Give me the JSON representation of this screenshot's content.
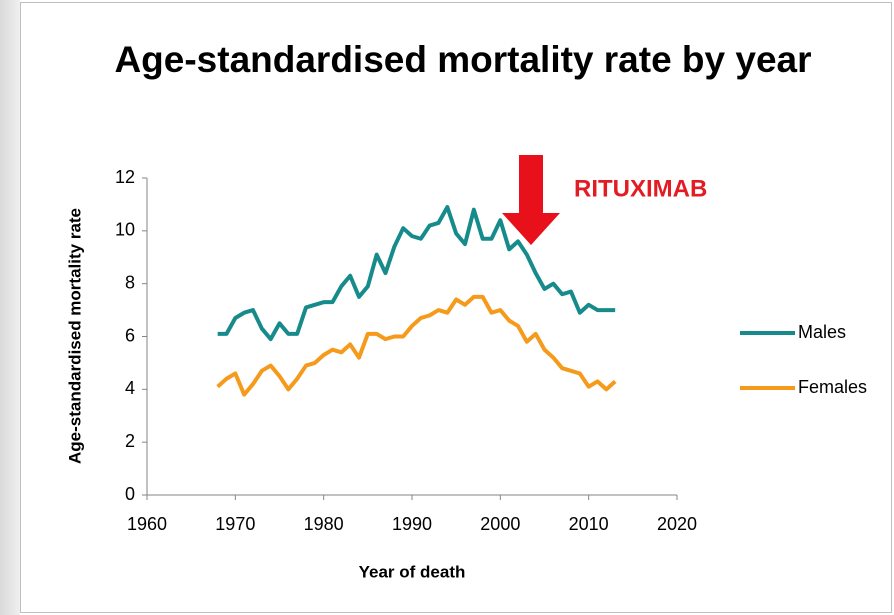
{
  "chart_data": {
    "type": "line",
    "title": "Age-standardised mortality rate by year",
    "x_label": "Year of death",
    "y_label": "Age-standardised mortality rate",
    "annotation": "RITUXIMAB",
    "x": [
      1968,
      1969,
      1970,
      1971,
      1972,
      1973,
      1974,
      1975,
      1976,
      1977,
      1978,
      1979,
      1980,
      1981,
      1982,
      1983,
      1984,
      1985,
      1986,
      1987,
      1988,
      1989,
      1990,
      1991,
      1992,
      1993,
      1994,
      1995,
      1996,
      1997,
      1998,
      1999,
      2000,
      2001,
      2002,
      2003,
      2004,
      2005,
      2006,
      2007,
      2008,
      2009,
      2010,
      2011,
      2012,
      2013
    ],
    "series": [
      {
        "name": "Males",
        "color": "#178b8b",
        "values": [
          6.1,
          6.1,
          6.7,
          6.9,
          7.0,
          6.3,
          5.9,
          6.5,
          6.1,
          6.1,
          7.1,
          7.2,
          7.3,
          7.3,
          7.9,
          8.3,
          7.5,
          7.9,
          9.1,
          8.4,
          9.4,
          10.1,
          9.8,
          9.7,
          10.2,
          10.3,
          10.9,
          9.9,
          9.5,
          10.8,
          9.7,
          9.7,
          10.4,
          9.3,
          9.6,
          9.1,
          8.4,
          7.8,
          8.0,
          7.6,
          7.7,
          6.9,
          7.2,
          7.0,
          7.0,
          7.0
        ]
      },
      {
        "name": "Females",
        "color": "#f59a1b",
        "values": [
          4.1,
          4.4,
          4.6,
          3.8,
          4.2,
          4.7,
          4.9,
          4.5,
          4.0,
          4.4,
          4.9,
          5.0,
          5.3,
          5.5,
          5.4,
          5.7,
          5.2,
          6.1,
          6.1,
          5.9,
          6.0,
          6.0,
          6.4,
          6.7,
          6.8,
          7.0,
          6.9,
          7.4,
          7.2,
          7.5,
          7.5,
          6.9,
          7.0,
          6.6,
          6.4,
          5.8,
          6.1,
          5.5,
          5.2,
          4.8,
          4.7,
          4.6,
          4.1,
          4.3,
          4.0,
          4.3
        ]
      }
    ],
    "xlim": [
      1960,
      2020
    ],
    "xticks": [
      1960,
      1970,
      1980,
      1990,
      2000,
      2010,
      2020
    ],
    "ylim": [
      0,
      12
    ],
    "yticks": [
      0,
      2,
      4,
      6,
      8,
      10,
      12
    ],
    "grid": false,
    "legend": "right"
  }
}
